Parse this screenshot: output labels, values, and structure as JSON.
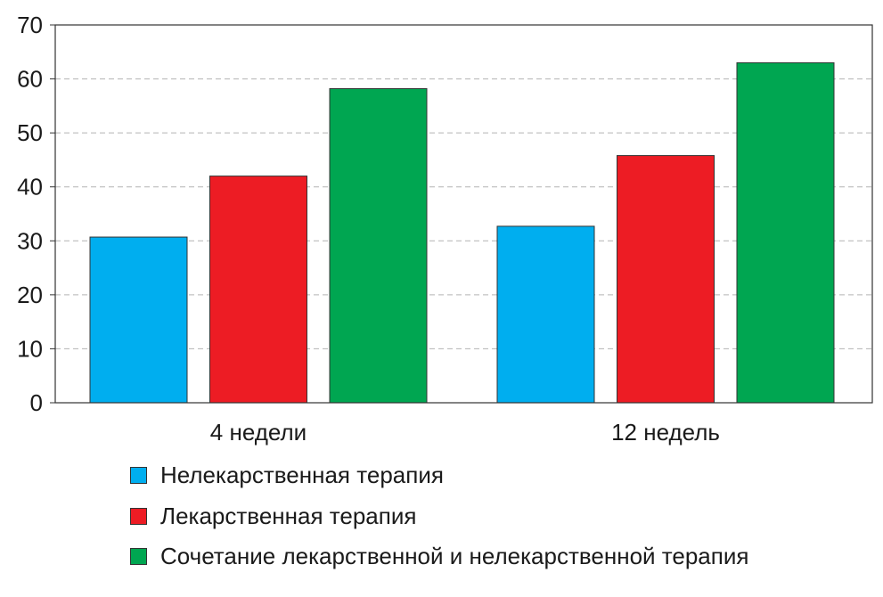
{
  "chart_data": {
    "type": "bar",
    "title": "",
    "xlabel": "",
    "ylabel": "",
    "categories": [
      "4 недели",
      "12 недель"
    ],
    "series": [
      {
        "name": "Нелекарственная терапия",
        "color": "#00aeef",
        "values": [
          30.7,
          32.7
        ]
      },
      {
        "name": "Лекарственная терапия",
        "color": "#ed1c24",
        "values": [
          42.0,
          45.8
        ]
      },
      {
        "name": "Сочетание лекарственной и нелекарственной терапия",
        "color": "#00a651",
        "values": [
          58.2,
          63.0
        ]
      }
    ],
    "ylim": [
      0,
      70
    ],
    "yticks": [
      "0",
      "10",
      "20",
      "30",
      "40",
      "50",
      "60",
      "70"
    ],
    "grid": true,
    "legend": "bottom"
  }
}
